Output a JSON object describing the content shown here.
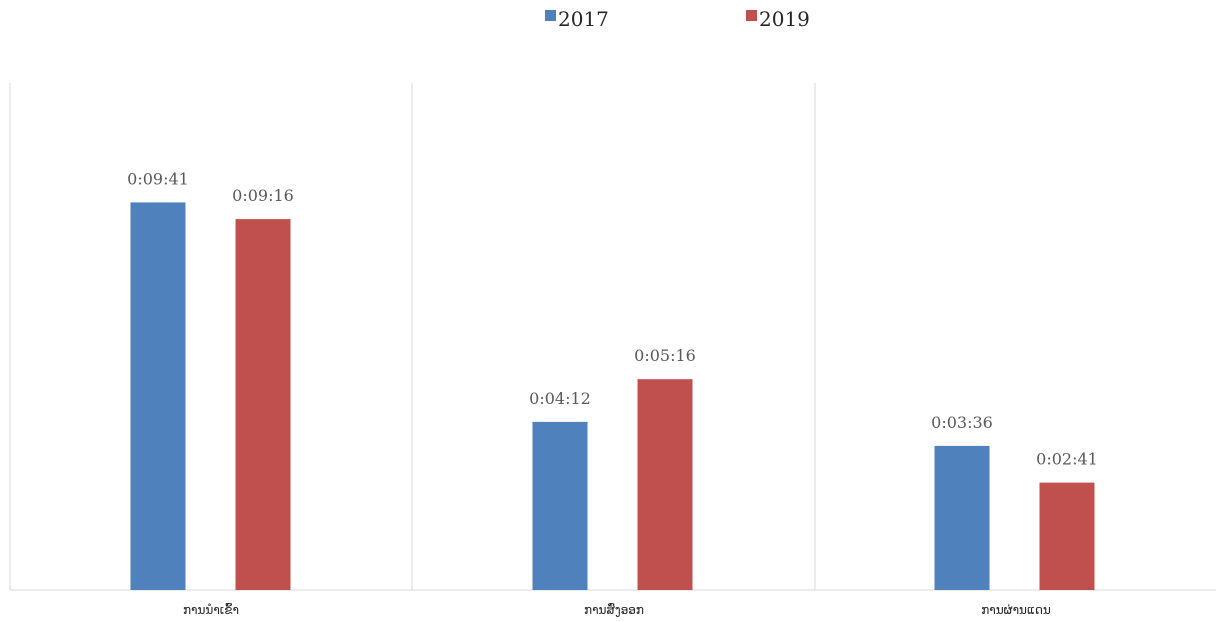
{
  "chart_data": {
    "type": "bar",
    "categories": [
      "ການນຳເຂົ້າ",
      "ການສົ່ງອອກ",
      "ການຜ່ານແດນ"
    ],
    "series": [
      {
        "name": "2017",
        "color": "#4F81BD",
        "values": [
          581,
          252,
          216
        ],
        "labels": [
          "0:09:41",
          "0:04:12",
          "0:03:36"
        ]
      },
      {
        "name": "2019",
        "color": "#C0504D",
        "values": [
          556,
          316,
          161
        ],
        "labels": [
          "0:09:16",
          "0:05:16",
          "0:02:41"
        ]
      }
    ],
    "value_unit": "seconds",
    "ylim": [
      0,
      760
    ],
    "grid": "vertical category separators",
    "legend_position": "top-center",
    "title": "",
    "xlabel": "",
    "ylabel": ""
  }
}
